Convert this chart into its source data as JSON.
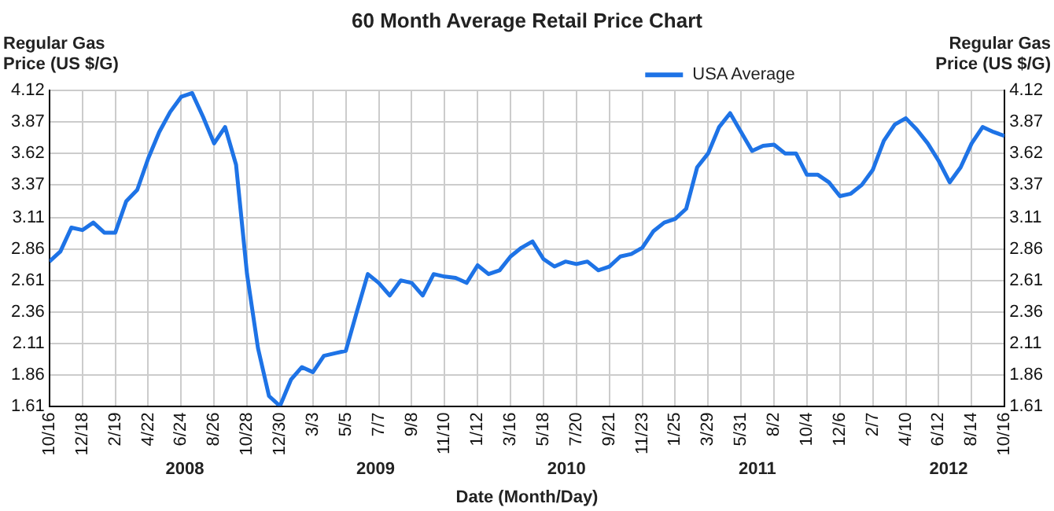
{
  "chart_data": {
    "type": "line",
    "title": "60 Month Average Retail Price Chart",
    "xlabel": "Date (Month/Day)",
    "ylabel": "Regular Gas Price (US $/G)",
    "y2label": "Regular Gas Price (US $/G)",
    "xlim": [
      "2007-10-16",
      "2012-10-16"
    ],
    "xticks": [
      {
        "value": "2007-10-16",
        "label": "10/16"
      },
      {
        "value": "2007-12-18",
        "label": "12/18"
      },
      {
        "value": "2008-02-19",
        "label": "2/19"
      },
      {
        "value": "2008-04-22",
        "label": "4/22"
      },
      {
        "value": "2008-06-24",
        "label": "6/24"
      },
      {
        "value": "2008-08-26",
        "label": "8/26"
      },
      {
        "value": "2008-10-28",
        "label": "10/28"
      },
      {
        "value": "2008-12-30",
        "label": "12/30"
      },
      {
        "value": "2009-03-03",
        "label": "3/3"
      },
      {
        "value": "2009-05-05",
        "label": "5/5"
      },
      {
        "value": "2009-07-07",
        "label": "7/7"
      },
      {
        "value": "2009-09-08",
        "label": "9/8"
      },
      {
        "value": "2009-11-10",
        "label": "11/10"
      },
      {
        "value": "2010-01-12",
        "label": "1/12"
      },
      {
        "value": "2010-03-16",
        "label": "3/16"
      },
      {
        "value": "2010-05-18",
        "label": "5/18"
      },
      {
        "value": "2010-07-20",
        "label": "7/20"
      },
      {
        "value": "2010-09-21",
        "label": "9/21"
      },
      {
        "value": "2010-11-23",
        "label": "11/23"
      },
      {
        "value": "2011-01-25",
        "label": "1/25"
      },
      {
        "value": "2011-03-29",
        "label": "3/29"
      },
      {
        "value": "2011-05-31",
        "label": "5/31"
      },
      {
        "value": "2011-08-02",
        "label": "8/2"
      },
      {
        "value": "2011-10-04",
        "label": "10/4"
      },
      {
        "value": "2011-12-06",
        "label": "12/6"
      },
      {
        "value": "2012-02-07",
        "label": "2/7"
      },
      {
        "value": "2012-04-10",
        "label": "4/10"
      },
      {
        "value": "2012-06-12",
        "label": "6/12"
      },
      {
        "value": "2012-08-14",
        "label": "8/14"
      },
      {
        "value": "2012-10-16",
        "label": "10/16"
      }
    ],
    "ylim": [
      1.61,
      4.12
    ],
    "yticks": [
      1.61,
      1.86,
      2.11,
      2.36,
      2.61,
      2.86,
      3.11,
      3.37,
      3.62,
      3.87,
      4.12
    ],
    "y2lim": [
      1.61,
      4.12
    ],
    "y2ticks": [
      1.61,
      1.86,
      2.11,
      2.36,
      2.61,
      2.86,
      3.11,
      3.37,
      3.62,
      3.87,
      4.12
    ],
    "grid": true,
    "legend": "top right",
    "marker": "none",
    "line_style": "solid",
    "x": [
      "2007-10-16",
      "2007-11-06",
      "2007-11-27",
      "2007-12-18",
      "2008-01-08",
      "2008-01-29",
      "2008-02-19",
      "2008-03-11",
      "2008-04-01",
      "2008-04-22",
      "2008-05-13",
      "2008-06-03",
      "2008-06-24",
      "2008-07-15",
      "2008-08-05",
      "2008-08-26",
      "2008-09-16",
      "2008-10-07",
      "2008-10-28",
      "2008-11-18",
      "2008-12-09",
      "2008-12-30",
      "2009-01-20",
      "2009-02-10",
      "2009-03-03",
      "2009-03-24",
      "2009-04-14",
      "2009-05-05",
      "2009-05-26",
      "2009-06-16",
      "2009-07-07",
      "2009-07-28",
      "2009-08-18",
      "2009-09-08",
      "2009-09-29",
      "2009-10-20",
      "2009-11-10",
      "2009-12-01",
      "2009-12-22",
      "2010-01-12",
      "2010-02-02",
      "2010-02-23",
      "2010-03-16",
      "2010-04-06",
      "2010-04-27",
      "2010-05-18",
      "2010-06-08",
      "2010-06-29",
      "2010-07-20",
      "2010-08-10",
      "2010-08-31",
      "2010-09-21",
      "2010-10-12",
      "2010-11-02",
      "2010-11-23",
      "2010-12-14",
      "2011-01-04",
      "2011-01-25",
      "2011-02-15",
      "2011-03-08",
      "2011-03-29",
      "2011-04-19",
      "2011-05-10",
      "2011-05-31",
      "2011-06-21",
      "2011-07-12",
      "2011-08-02",
      "2011-08-23",
      "2011-09-13",
      "2011-10-04",
      "2011-10-25",
      "2011-11-15",
      "2011-12-06",
      "2011-12-27",
      "2012-01-17",
      "2012-02-07",
      "2012-02-28",
      "2012-03-20",
      "2012-04-10",
      "2012-05-01",
      "2012-05-22",
      "2012-06-12",
      "2012-07-03",
      "2012-07-24",
      "2012-08-14",
      "2012-09-04",
      "2012-09-25",
      "2012-10-16"
    ],
    "series": [
      {
        "name": "USA Average",
        "color": "#1e73e6",
        "values": [
          2.76,
          2.84,
          3.03,
          3.01,
          3.07,
          2.99,
          2.99,
          3.24,
          3.33,
          3.58,
          3.79,
          3.95,
          4.07,
          4.1,
          3.91,
          3.7,
          3.83,
          3.53,
          2.66,
          2.07,
          1.69,
          1.61,
          1.82,
          1.92,
          1.88,
          2.01,
          2.03,
          2.05,
          2.36,
          2.66,
          2.59,
          2.49,
          2.61,
          2.59,
          2.49,
          2.66,
          2.64,
          2.63,
          2.59,
          2.73,
          2.66,
          2.69,
          2.8,
          2.87,
          2.92,
          2.78,
          2.72,
          2.76,
          2.74,
          2.76,
          2.69,
          2.72,
          2.8,
          2.82,
          2.87,
          3.0,
          3.07,
          3.1,
          3.18,
          3.51,
          3.62,
          3.83,
          3.94,
          3.79,
          3.64,
          3.68,
          3.69,
          3.62,
          3.62,
          3.45,
          3.45,
          3.39,
          3.28,
          3.3,
          3.37,
          3.49,
          3.72,
          3.85,
          3.9,
          3.81,
          3.7,
          3.56,
          3.39,
          3.51,
          3.7,
          3.83,
          3.79,
          3.76
        ]
      }
    ],
    "annotations": [
      "2008",
      "2009",
      "2010",
      "2011",
      "2012"
    ]
  }
}
